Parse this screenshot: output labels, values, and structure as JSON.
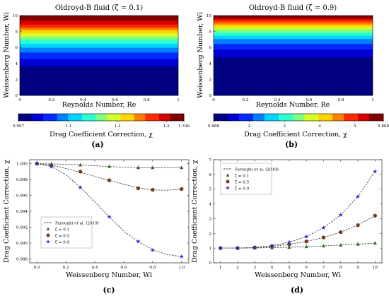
{
  "chart_data": [
    {
      "type": "heatmap",
      "panel_label": "(a)",
      "title": "Oldroyd-B fluid (ζ = 0.1)",
      "xlabel": "Reynolds Number, Re",
      "ylabel": "Weissenberg Number, Wi",
      "xlim": [
        0,
        1
      ],
      "ylim": [
        0,
        10
      ],
      "xticks": [
        "0",
        "0.2",
        "0.4",
        "0.6",
        "0.8",
        "1"
      ],
      "yticks": [
        "0",
        "2",
        "4",
        "6",
        "8",
        "10"
      ],
      "colorbar": {
        "label": "Drag Coefficient Correction, χ",
        "min": 0.997,
        "max": 1.336,
        "tick_labels": [
          "0.997",
          "1.1",
          "1.2",
          "1.3",
          "1.336"
        ],
        "tick_values": [
          0.997,
          1.1,
          1.2,
          1.3,
          1.336
        ]
      },
      "y_values": [
        0,
        1,
        2,
        3,
        4,
        5,
        6,
        7,
        8,
        9,
        10
      ],
      "chi_by_wi": [
        0.997,
        0.997,
        1.0,
        1.01,
        1.03,
        1.06,
        1.1,
        1.15,
        1.22,
        1.29,
        1.336
      ]
    },
    {
      "type": "heatmap",
      "panel_label": "(b)",
      "title": "Oldroyd-B fluid (ζ = 0.9)",
      "xlabel": "Reynolds Number, Re",
      "ylabel": "Weissenberg Number, Wi",
      "xlim": [
        0,
        1
      ],
      "ylim": [
        0,
        10
      ],
      "xticks": [
        "0",
        "0.2",
        "0.4",
        "0.6",
        "0.8",
        "1"
      ],
      "yticks": [
        "0",
        "2",
        "4",
        "6",
        "8",
        "10"
      ],
      "colorbar": {
        "label": "Drag Coefficient Correction, χ",
        "min": 0.988,
        "max": 5.808,
        "tick_labels": [
          "0.988",
          "2",
          "3",
          "4",
          "5",
          "5.808"
        ],
        "tick_values": [
          0.988,
          2,
          3,
          4,
          5,
          5.808
        ]
      },
      "y_values": [
        0,
        1,
        2,
        3,
        4,
        5,
        6,
        7,
        8,
        9,
        10
      ],
      "chi_by_wi": [
        0.988,
        0.99,
        1.0,
        1.03,
        1.15,
        1.4,
        1.8,
        2.4,
        3.3,
        4.4,
        5.808
      ]
    },
    {
      "type": "scatter",
      "panel_label": "(c)",
      "xlabel": "Weissenberg Number, Wi",
      "ylabel": "Drag Coefficient Correction, χ",
      "xlim": [
        -0.05,
        1.05
      ],
      "ylim": [
        0.9875,
        1.0005
      ],
      "xticks": [
        0.0,
        0.2,
        0.4,
        0.6,
        0.8,
        1.0
      ],
      "xtick_labels": [
        "0.0",
        "0.2",
        "0.4",
        "0.6",
        "0.8",
        "1.0"
      ],
      "yticks": [
        0.988,
        0.99,
        0.992,
        0.994,
        0.996,
        0.998,
        1.0
      ],
      "ytick_labels": [
        "0.988",
        "0.990",
        "0.992",
        "0.994",
        "0.996",
        "0.998",
        "1.000"
      ],
      "legend_position": "bottom-left",
      "legend_line": "Faroughi et al. (2019)",
      "series": [
        {
          "name": "ζ = 0.1",
          "marker": "triangle",
          "color": "#2e6b1e",
          "x": [
            0.0,
            0.1,
            0.3,
            0.5,
            0.7,
            0.8,
            1.0
          ],
          "y": [
            1.0,
            0.99995,
            0.99985,
            0.99965,
            0.9995,
            0.9995,
            0.9995
          ],
          "curve": [
            [
              0.0,
              1.0
            ],
            [
              0.1,
              0.99997
            ],
            [
              0.2,
              0.99992
            ],
            [
              0.3,
              0.99984
            ],
            [
              0.4,
              0.99974
            ],
            [
              0.5,
              0.99964
            ],
            [
              0.6,
              0.99955
            ],
            [
              0.7,
              0.9995
            ],
            [
              0.8,
              0.99948
            ],
            [
              0.9,
              0.99949
            ],
            [
              1.0,
              0.99952
            ]
          ]
        },
        {
          "name": "ζ = 0.5",
          "marker": "circle",
          "color": "#7b3f14",
          "x": [
            0.0,
            0.1,
            0.3,
            0.5,
            0.7,
            0.8,
            1.0
          ],
          "y": [
            1.0,
            0.9998,
            0.999,
            0.9979,
            0.9969,
            0.9967,
            0.9968
          ],
          "curve": [
            [
              0.0,
              1.0
            ],
            [
              0.1,
              0.99978
            ],
            [
              0.2,
              0.9994
            ],
            [
              0.3,
              0.9989
            ],
            [
              0.4,
              0.9984
            ],
            [
              0.5,
              0.9979
            ],
            [
              0.6,
              0.9974
            ],
            [
              0.7,
              0.99695
            ],
            [
              0.8,
              0.9967
            ],
            [
              0.9,
              0.99665
            ],
            [
              1.0,
              0.9968
            ]
          ]
        },
        {
          "name": "ζ = 0.9",
          "marker": "star",
          "color": "#1f2bd6",
          "x": [
            0.0,
            0.1,
            0.3,
            0.5,
            0.7,
            0.8,
            1.0
          ],
          "y": [
            1.0,
            0.9996,
            0.997,
            0.9933,
            0.9902,
            0.9891,
            0.9883
          ],
          "curve": [
            [
              0.0,
              1.0
            ],
            [
              0.1,
              0.99965
            ],
            [
              0.2,
              0.9986
            ],
            [
              0.3,
              0.997
            ],
            [
              0.4,
              0.9952
            ],
            [
              0.5,
              0.9933
            ],
            [
              0.6,
              0.9915
            ],
            [
              0.7,
              0.99015
            ],
            [
              0.8,
              0.98915
            ],
            [
              0.9,
              0.98855
            ],
            [
              1.0,
              0.98828
            ]
          ]
        }
      ]
    },
    {
      "type": "scatter",
      "panel_label": "(d)",
      "xlabel": "Weissenberg Number, Wi",
      "ylabel": "Drag Coefficient Correction, χ",
      "xlim": [
        0.6,
        10.4
      ],
      "ylim": [
        0,
        7
      ],
      "xticks": [
        1,
        2,
        3,
        4,
        5,
        6,
        7,
        8,
        9,
        10
      ],
      "xtick_labels": [
        "1",
        "2",
        "3",
        "4",
        "5",
        "6",
        "7",
        "8",
        "9",
        "10"
      ],
      "yticks": [
        0,
        1,
        2,
        3,
        4,
        5,
        6,
        7
      ],
      "ytick_labels": [
        "0",
        "1",
        "2",
        "3",
        "4",
        "5",
        "6",
        "7"
      ],
      "legend_position": "top-left",
      "legend_line": "Faroughi et al. (2019)",
      "series": [
        {
          "name": "ζ = 0.1",
          "marker": "triangle",
          "color": "#2e6b1e",
          "x": [
            1,
            2,
            3,
            4,
            5,
            6,
            7,
            8,
            9,
            10
          ],
          "y": [
            1.0,
            1.0,
            1.01,
            1.03,
            1.06,
            1.1,
            1.15,
            1.2,
            1.27,
            1.34
          ],
          "curve": [
            [
              1,
              1.0
            ],
            [
              2,
              1.0
            ],
            [
              3,
              1.01
            ],
            [
              4,
              1.03
            ],
            [
              5,
              1.06
            ],
            [
              6,
              1.1
            ],
            [
              7,
              1.15
            ],
            [
              8,
              1.21
            ],
            [
              9,
              1.27
            ],
            [
              10,
              1.34
            ]
          ]
        },
        {
          "name": "ζ = 0.5",
          "marker": "circle",
          "color": "#7b3f14",
          "x": [
            1,
            2,
            3,
            4,
            5,
            6,
            7,
            8,
            9,
            10
          ],
          "y": [
            1.0,
            1.0,
            1.04,
            1.12,
            1.25,
            1.45,
            1.72,
            2.08,
            2.55,
            3.2
          ],
          "curve": [
            [
              1,
              1.0
            ],
            [
              2,
              1.0
            ],
            [
              3,
              1.04
            ],
            [
              4,
              1.12
            ],
            [
              5,
              1.25
            ],
            [
              6,
              1.45
            ],
            [
              7,
              1.72
            ],
            [
              8,
              2.08
            ],
            [
              9,
              2.57
            ],
            [
              10,
              3.2
            ]
          ]
        },
        {
          "name": "ζ = 0.9",
          "marker": "star",
          "color": "#1f2bd6",
          "x": [
            1,
            2,
            3,
            4,
            5,
            6,
            7,
            8,
            9,
            10
          ],
          "y": [
            1.0,
            1.0,
            1.05,
            1.17,
            1.4,
            1.78,
            2.38,
            3.25,
            4.5,
            6.2
          ],
          "curve": [
            [
              1,
              1.0
            ],
            [
              2,
              1.0
            ],
            [
              3,
              1.05
            ],
            [
              4,
              1.17
            ],
            [
              5,
              1.4
            ],
            [
              6,
              1.78
            ],
            [
              7,
              2.38
            ],
            [
              8,
              3.25
            ],
            [
              9,
              4.5
            ],
            [
              10,
              6.2
            ]
          ]
        }
      ]
    }
  ]
}
